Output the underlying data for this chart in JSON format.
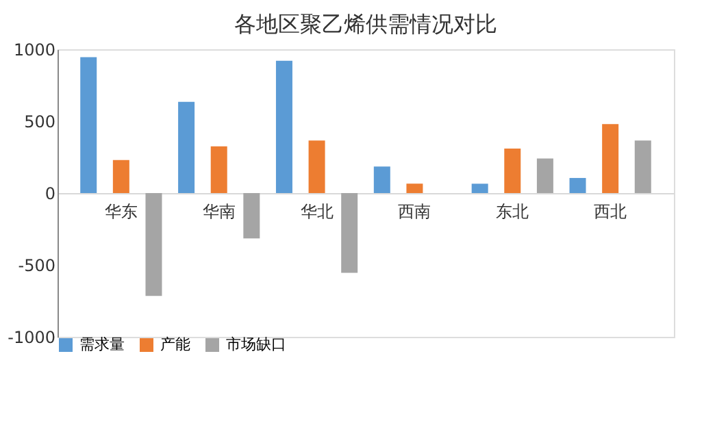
{
  "chart_data": {
    "type": "bar",
    "title": "各地区聚乙烯供需情况对比",
    "categories": [
      "华东",
      "华南",
      "华北",
      "西南",
      "东北",
      "西北"
    ],
    "series": [
      {
        "name": "需求量",
        "color": "#5b9bd5",
        "values": [
          945,
          635,
          920,
          185,
          65,
          105
        ]
      },
      {
        "name": "产能",
        "color": "#ed7d31",
        "values": [
          230,
          325,
          365,
          65,
          310,
          480
        ]
      },
      {
        "name": "市场缺口",
        "color": "#a5a5a5",
        "values": [
          -715,
          -315,
          -555,
          null,
          240,
          365
        ]
      }
    ],
    "ylim": [
      -1000,
      1000
    ],
    "yticks": [
      -1000,
      -500,
      0,
      500,
      1000
    ],
    "grid": false,
    "legend": "bottom"
  }
}
